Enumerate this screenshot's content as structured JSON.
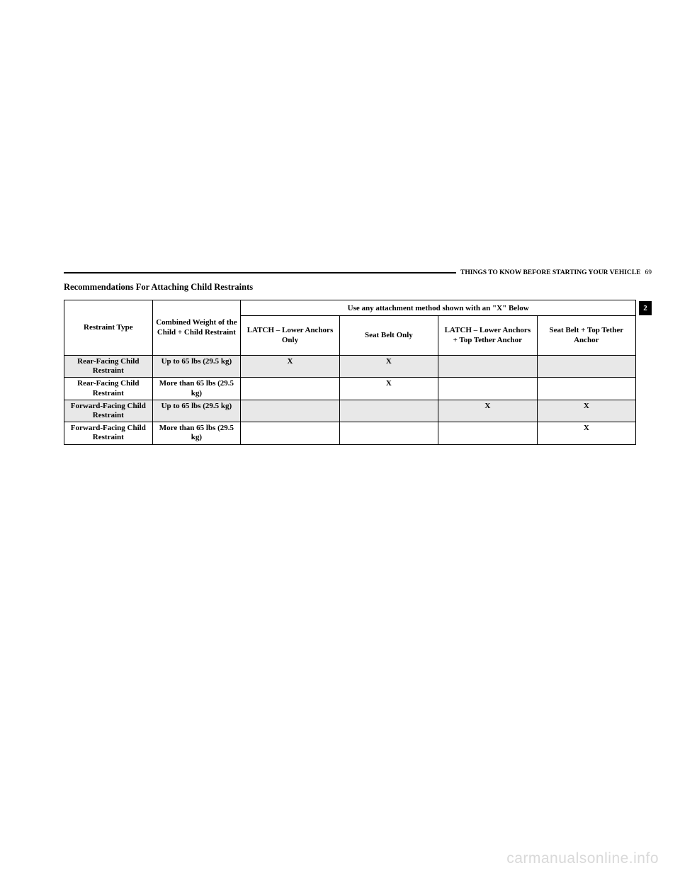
{
  "header": {
    "section_label": "THINGS TO KNOW BEFORE STARTING YOUR VEHICLE",
    "page_number": "69",
    "tab_number": "2"
  },
  "section_title": "Recommendations For Attaching Child Restraints",
  "table": {
    "columns": {
      "restraint_type": "Restraint Type",
      "combined_weight": "Combined Weight of the Child + Child Restraint",
      "method_header": "Use any attachment method shown with an \"X\" Below",
      "latch_lower": "LATCH – Lower Anchors Only",
      "seatbelt_only": "Seat Belt Only",
      "latch_tether": "LATCH – Lower Anchors + Top Tether Anchor",
      "seatbelt_tether": "Seat Belt + Top Tether Anchor"
    },
    "rows": [
      {
        "type": "Rear-Facing Child Restraint",
        "weight": "Up to 65 lbs (29.5 kg)",
        "latch_lower": "X",
        "seatbelt_only": "X",
        "latch_tether": "",
        "seatbelt_tether": "",
        "shaded": true
      },
      {
        "type": "Rear-Facing Child Restraint",
        "weight": "More than 65 lbs (29.5 kg)",
        "latch_lower": "",
        "seatbelt_only": "X",
        "latch_tether": "",
        "seatbelt_tether": "",
        "shaded": false
      },
      {
        "type": "Forward-Facing Child Restraint",
        "weight": "Up to 65 lbs (29.5 kg)",
        "latch_lower": "",
        "seatbelt_only": "",
        "latch_tether": "X",
        "seatbelt_tether": "X",
        "shaded": true
      },
      {
        "type": "Forward-Facing Child Restraint",
        "weight": "More than 65 lbs (29.5 kg)",
        "latch_lower": "",
        "seatbelt_only": "",
        "latch_tether": "",
        "seatbelt_tether": "X",
        "shaded": false
      }
    ]
  },
  "watermark": "carmanualsonline.info"
}
